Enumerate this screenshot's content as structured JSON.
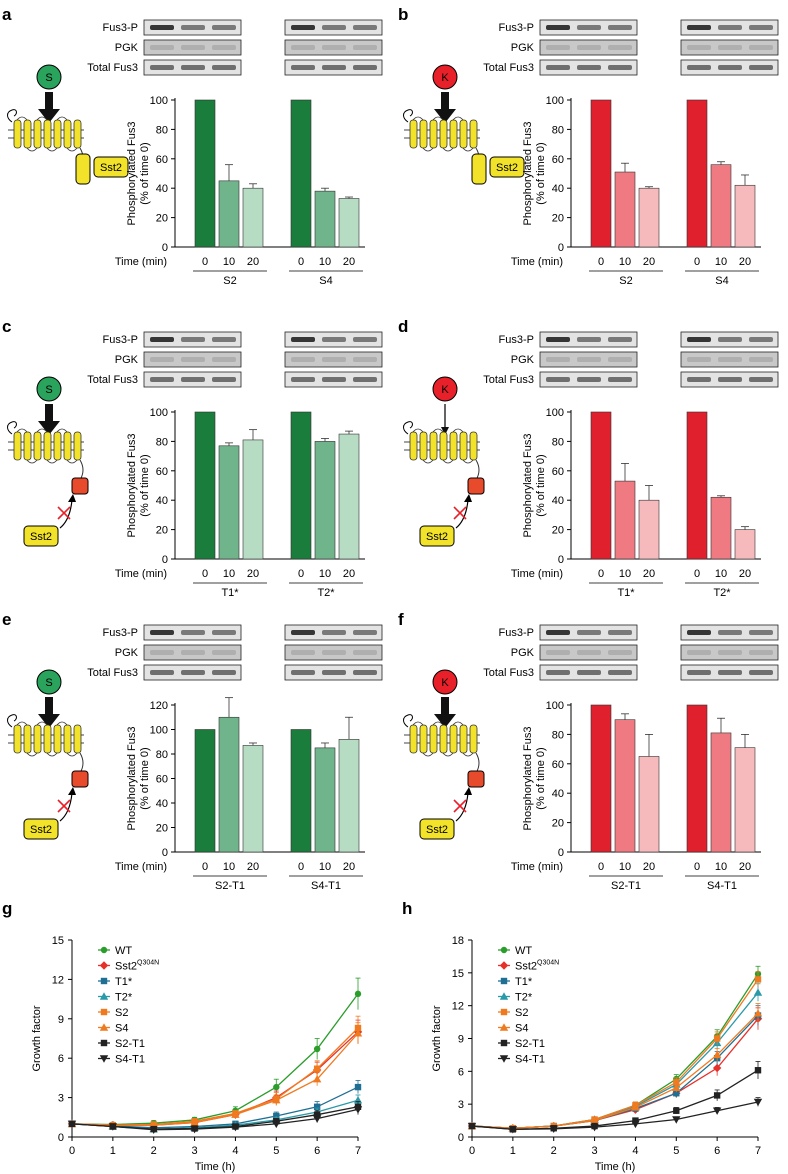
{
  "figure": {
    "blot_labels": [
      "Fus3-P",
      "PGK",
      "Total Fus3"
    ],
    "time_label": "Time (min)",
    "ylabel_line1": "Phosphorylated Fus3",
    "ylabel_line2": "(% of time 0)",
    "receptor_label": "Sst2",
    "colors": {
      "s_dark": "#1a7d3c",
      "s_mid": "#6fb48b",
      "s_light": "#b7dcc4",
      "k_dark": "#e0202c",
      "k_mid": "#ef7a82",
      "k_light": "#f6babd",
      "s_circle": "#2aa35c",
      "k_circle": "#e8202a",
      "membrane": "#f2e32a",
      "tail": "#e84a2c"
    },
    "panels": [
      {
        "letter": "a",
        "ligand": "S",
        "tail": "sst2",
        "thick_arrow": true
      },
      {
        "letter": "b",
        "ligand": "K",
        "tail": "sst2",
        "thick_arrow": true
      },
      {
        "letter": "c",
        "ligand": "S",
        "tail": "red",
        "thick_arrow": true
      },
      {
        "letter": "d",
        "ligand": "K",
        "tail": "red",
        "thick_arrow": false
      },
      {
        "letter": "e",
        "ligand": "S",
        "tail": "red",
        "thick_arrow": true
      },
      {
        "letter": "f",
        "ligand": "K",
        "tail": "red",
        "thick_arrow": true
      }
    ],
    "growth_panels": [
      {
        "letter": "g"
      },
      {
        "letter": "h"
      }
    ]
  },
  "chart_data": [
    {
      "panel": "a",
      "type": "bar",
      "title": "",
      "ylabel": "Phosphorylated Fus3 (% of time 0)",
      "xlabel": "Time (min)",
      "ylim": [
        0,
        100
      ],
      "yticks": [
        0,
        20,
        40,
        60,
        80,
        100
      ],
      "time_ticks": [
        "0",
        "10",
        "20"
      ],
      "groups": [
        {
          "name": "S2",
          "values": [
            100,
            45,
            40
          ],
          "errors": [
            0,
            11,
            3
          ]
        },
        {
          "name": "S4",
          "values": [
            100,
            38,
            33
          ],
          "errors": [
            0,
            2,
            1
          ]
        }
      ]
    },
    {
      "panel": "b",
      "type": "bar",
      "title": "",
      "ylabel": "Phosphorylated Fus3 (% of time 0)",
      "xlabel": "Time (min)",
      "ylim": [
        0,
        100
      ],
      "yticks": [
        0,
        20,
        40,
        60,
        80,
        100
      ],
      "time_ticks": [
        "0",
        "10",
        "20"
      ],
      "groups": [
        {
          "name": "S2",
          "values": [
            100,
            51,
            40
          ],
          "errors": [
            0,
            6,
            1
          ]
        },
        {
          "name": "S4",
          "values": [
            100,
            56,
            42
          ],
          "errors": [
            0,
            2,
            7
          ]
        }
      ]
    },
    {
      "panel": "c",
      "type": "bar",
      "title": "",
      "ylabel": "Phosphorylated Fus3 (% of time 0)",
      "xlabel": "Time (min)",
      "ylim": [
        0,
        100
      ],
      "yticks": [
        0,
        20,
        40,
        60,
        80,
        100
      ],
      "time_ticks": [
        "0",
        "10",
        "20"
      ],
      "groups": [
        {
          "name": "T1*",
          "values": [
            100,
            77,
            81
          ],
          "errors": [
            0,
            2,
            7
          ]
        },
        {
          "name": "T2*",
          "values": [
            100,
            80,
            85
          ],
          "errors": [
            0,
            2,
            2
          ]
        }
      ]
    },
    {
      "panel": "d",
      "type": "bar",
      "title": "",
      "ylabel": "Phosphorylated Fus3 (% of time 0)",
      "xlabel": "Time (min)",
      "ylim": [
        0,
        100
      ],
      "yticks": [
        0,
        20,
        40,
        60,
        80,
        100
      ],
      "time_ticks": [
        "0",
        "10",
        "20"
      ],
      "groups": [
        {
          "name": "T1*",
          "values": [
            100,
            53,
            40
          ],
          "errors": [
            0,
            12,
            10
          ]
        },
        {
          "name": "T2*",
          "values": [
            100,
            42,
            20
          ],
          "errors": [
            0,
            1,
            2
          ]
        }
      ]
    },
    {
      "panel": "e",
      "type": "bar",
      "title": "",
      "ylabel": "Phosphorylated Fus3 (% of time 0)",
      "xlabel": "Time (min)",
      "ylim": [
        0,
        120
      ],
      "yticks": [
        0,
        20,
        40,
        60,
        80,
        100,
        120
      ],
      "time_ticks": [
        "0",
        "10",
        "20"
      ],
      "groups": [
        {
          "name": "S2-T1",
          "values": [
            100,
            110,
            87
          ],
          "errors": [
            0,
            16,
            2
          ]
        },
        {
          "name": "S4-T1",
          "values": [
            100,
            85,
            92
          ],
          "errors": [
            0,
            4,
            18
          ]
        }
      ]
    },
    {
      "panel": "f",
      "type": "bar",
      "title": "",
      "ylabel": "Phosphorylated Fus3 (% of time 0)",
      "xlabel": "Time (min)",
      "ylim": [
        0,
        100
      ],
      "yticks": [
        0,
        20,
        40,
        60,
        80,
        100
      ],
      "time_ticks": [
        "0",
        "10",
        "20"
      ],
      "groups": [
        {
          "name": "S2-T1",
          "values": [
            100,
            90,
            65
          ],
          "errors": [
            0,
            4,
            15
          ]
        },
        {
          "name": "S4-T1",
          "values": [
            100,
            81,
            71
          ],
          "errors": [
            0,
            10,
            9
          ]
        }
      ]
    },
    {
      "panel": "g",
      "type": "line",
      "title": "",
      "xlabel": "Time (h)",
      "ylabel": "Growth factor",
      "x": [
        0,
        1,
        2,
        3,
        4,
        5,
        6,
        7
      ],
      "xlim": [
        0,
        7
      ],
      "ylim": [
        0,
        15
      ],
      "yticks": [
        0,
        3,
        6,
        9,
        12,
        15
      ],
      "series": [
        {
          "name": "WT",
          "superscript": "",
          "color": "#2a9d2a",
          "marker": "circle",
          "values": [
            1,
            0.95,
            1.05,
            1.3,
            2.0,
            3.8,
            6.7,
            10.9
          ],
          "errors": [
            0,
            0.1,
            0.2,
            0.2,
            0.3,
            0.6,
            0.8,
            1.2
          ]
        },
        {
          "name": "Sst2",
          "superscript": "Q304N",
          "color": "#e8302a",
          "marker": "diamond",
          "values": [
            1,
            0.9,
            0.9,
            1.1,
            1.7,
            3.0,
            5.1,
            8.0
          ],
          "errors": [
            0,
            0.1,
            0.1,
            0.2,
            0.2,
            0.5,
            0.6,
            0.9
          ]
        },
        {
          "name": "T1*",
          "superscript": "",
          "color": "#1f6f94",
          "marker": "square",
          "values": [
            1,
            0.85,
            0.7,
            0.8,
            1.0,
            1.6,
            2.3,
            3.8
          ],
          "errors": [
            0,
            0.1,
            0.1,
            0.1,
            0.2,
            0.3,
            0.4,
            0.5
          ]
        },
        {
          "name": "T2*",
          "superscript": "",
          "color": "#2a9aa8",
          "marker": "triangle",
          "values": [
            1,
            0.8,
            0.6,
            0.7,
            0.9,
            1.3,
            1.9,
            2.8
          ],
          "errors": [
            0,
            0.1,
            0.1,
            0.1,
            0.1,
            0.2,
            0.3,
            0.4
          ]
        },
        {
          "name": "S2",
          "superscript": "",
          "color": "#f07a20",
          "marker": "square",
          "values": [
            1,
            0.9,
            0.95,
            1.2,
            1.8,
            2.9,
            5.2,
            8.3
          ],
          "errors": [
            0,
            0.1,
            0.1,
            0.2,
            0.2,
            0.5,
            0.6,
            0.9
          ]
        },
        {
          "name": "S4",
          "superscript": "",
          "color": "#f07a20",
          "marker": "triangle",
          "values": [
            1,
            0.9,
            0.9,
            1.1,
            1.7,
            2.8,
            4.4,
            7.9
          ],
          "errors": [
            0,
            0.1,
            0.1,
            0.1,
            0.2,
            0.4,
            0.5,
            0.8
          ]
        },
        {
          "name": "S2-T1",
          "superscript": "",
          "color": "#222222",
          "marker": "square",
          "values": [
            1,
            0.8,
            0.6,
            0.65,
            0.8,
            1.2,
            1.7,
            2.3
          ],
          "errors": [
            0,
            0.1,
            0.1,
            0.1,
            0.1,
            0.2,
            0.3,
            0.4
          ]
        },
        {
          "name": "S4-T1",
          "superscript": "",
          "color": "#222222",
          "marker": "triangle-down",
          "values": [
            1,
            0.8,
            0.55,
            0.6,
            0.75,
            1.0,
            1.4,
            2.1
          ],
          "errors": [
            0,
            0.1,
            0.1,
            0.1,
            0.1,
            0.2,
            0.3,
            0.4
          ]
        }
      ]
    },
    {
      "panel": "h",
      "type": "line",
      "title": "",
      "xlabel": "Time (h)",
      "ylabel": "Growth factor",
      "x": [
        0,
        1,
        2,
        3,
        4,
        5,
        6,
        7
      ],
      "xlim": [
        0,
        7
      ],
      "ylim": [
        0,
        18
      ],
      "yticks": [
        0,
        3,
        6,
        9,
        12,
        15,
        18
      ],
      "series": [
        {
          "name": "WT",
          "superscript": "",
          "color": "#2a9d2a",
          "marker": "circle",
          "values": [
            1,
            0.8,
            1.0,
            1.6,
            2.9,
            5.3,
            9.2,
            14.9
          ],
          "errors": [
            0,
            0.1,
            0.1,
            0.2,
            0.3,
            0.4,
            0.6,
            0.7
          ]
        },
        {
          "name": "Sst2",
          "superscript": "Q304N",
          "color": "#e8302a",
          "marker": "diamond",
          "values": [
            1,
            0.8,
            1.0,
            1.5,
            2.5,
            4.0,
            6.3,
            10.8
          ],
          "errors": [
            0,
            0.1,
            0.1,
            0.2,
            0.2,
            0.4,
            0.7,
            1.0
          ]
        },
        {
          "name": "T1*",
          "superscript": "",
          "color": "#1f6f94",
          "marker": "square",
          "values": [
            1,
            0.8,
            1.0,
            1.5,
            2.6,
            4.0,
            7.2,
            11.1
          ],
          "errors": [
            0,
            0.1,
            0.1,
            0.2,
            0.2,
            0.4,
            0.6,
            0.9
          ]
        },
        {
          "name": "T2*",
          "superscript": "",
          "color": "#2a9aa8",
          "marker": "triangle",
          "values": [
            1,
            0.8,
            1.0,
            1.6,
            2.8,
            4.8,
            8.6,
            13.2
          ],
          "errors": [
            0,
            0.1,
            0.1,
            0.2,
            0.3,
            0.4,
            0.6,
            0.8
          ]
        },
        {
          "name": "S2",
          "superscript": "",
          "color": "#f07a20",
          "marker": "square",
          "values": [
            1,
            0.8,
            1.0,
            1.6,
            2.9,
            5.0,
            9.0,
            14.4
          ],
          "errors": [
            0,
            0.1,
            0.1,
            0.2,
            0.3,
            0.4,
            0.6,
            0.7
          ]
        },
        {
          "name": "S4",
          "superscript": "",
          "color": "#f07a20",
          "marker": "triangle",
          "values": [
            1,
            0.8,
            1.0,
            1.5,
            2.7,
            4.5,
            7.5,
            11.3
          ],
          "errors": [
            0,
            0.1,
            0.1,
            0.2,
            0.2,
            0.4,
            0.6,
            0.9
          ]
        },
        {
          "name": "S2-T1",
          "superscript": "",
          "color": "#222222",
          "marker": "square",
          "values": [
            1,
            0.7,
            0.8,
            1.0,
            1.5,
            2.4,
            3.8,
            6.1
          ],
          "errors": [
            0,
            0.1,
            0.1,
            0.1,
            0.2,
            0.3,
            0.5,
            0.8
          ]
        },
        {
          "name": "S4-T1",
          "superscript": "",
          "color": "#222222",
          "marker": "triangle-down",
          "values": [
            1,
            0.7,
            0.75,
            0.9,
            1.2,
            1.6,
            2.4,
            3.2
          ],
          "errors": [
            0,
            0.1,
            0.1,
            0.1,
            0.1,
            0.2,
            0.3,
            0.4
          ]
        }
      ]
    }
  ]
}
